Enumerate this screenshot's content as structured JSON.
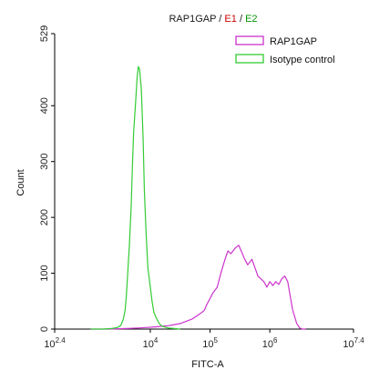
{
  "chart_data": {
    "type": "line",
    "title_parts": [
      {
        "text": "RAP1GAP",
        "color": "#1a1a1a"
      },
      {
        "text": " / ",
        "color": "#1a1a1a"
      },
      {
        "text": "E1",
        "color": "#cc0000"
      },
      {
        "text": " / ",
        "color": "#1a1a1a"
      },
      {
        "text": "E2",
        "color": "#009900"
      }
    ],
    "xlabel": "FITC-A",
    "ylabel": "Count",
    "x_scale": "log10",
    "xlim": [
      2.4,
      7.4
    ],
    "ylim": [
      0,
      529
    ],
    "x_ticks": [
      {
        "base": "10",
        "exp": "2.4",
        "value": 2.4
      },
      {
        "base": "10",
        "exp": "4",
        "value": 4
      },
      {
        "base": "10",
        "exp": "5",
        "value": 5
      },
      {
        "base": "10",
        "exp": "6",
        "value": 6
      },
      {
        "base": "10",
        "exp": "7.4",
        "value": 7.4
      }
    ],
    "y_ticks": [
      "0",
      "100",
      "200",
      "300",
      "400",
      "529"
    ],
    "y_tick_values": [
      0,
      100,
      200,
      300,
      400,
      529
    ],
    "legend_position": "top-right",
    "series": [
      {
        "name": "RAP1GAP",
        "color": "#cc33cc",
        "log10_x": [
          3.0,
          3.3,
          3.6,
          3.8,
          3.95,
          4.1,
          4.2,
          4.3,
          4.4,
          4.5,
          4.6,
          4.7,
          4.8,
          4.9,
          4.95,
          5.0,
          5.05,
          5.12,
          5.18,
          5.25,
          5.3,
          5.35,
          5.42,
          5.48,
          5.52,
          5.58,
          5.63,
          5.7,
          5.75,
          5.8,
          5.85,
          5.9,
          5.95,
          6.0,
          6.05,
          6.1,
          6.15,
          6.2,
          6.25,
          6.3,
          6.38,
          6.45,
          6.5,
          6.55,
          6.6
        ],
        "counts": [
          0,
          0,
          1,
          2,
          3,
          4,
          5,
          6,
          8,
          10,
          14,
          18,
          25,
          33,
          45,
          55,
          65,
          75,
          100,
          125,
          140,
          135,
          145,
          150,
          140,
          125,
          115,
          125,
          110,
          95,
          90,
          85,
          75,
          85,
          78,
          85,
          80,
          90,
          95,
          85,
          35,
          10,
          2,
          0,
          0
        ]
      },
      {
        "name": "Isotype control",
        "color": "#33cc33",
        "log10_x": [
          3.0,
          3.2,
          3.35,
          3.4,
          3.45,
          3.5,
          3.52,
          3.55,
          3.58,
          3.6,
          3.62,
          3.65,
          3.68,
          3.7,
          3.72,
          3.75,
          3.78,
          3.8,
          3.82,
          3.85,
          3.88,
          3.9,
          3.93,
          3.96,
          4.0,
          4.03,
          4.06,
          4.1,
          4.15,
          4.2,
          4.3,
          4.4,
          4.5
        ],
        "counts": [
          0,
          0,
          1,
          2,
          3,
          6,
          10,
          18,
          35,
          60,
          95,
          150,
          220,
          290,
          350,
          400,
          450,
          470,
          465,
          430,
          340,
          250,
          170,
          110,
          75,
          50,
          30,
          20,
          10,
          5,
          2,
          1,
          0
        ]
      }
    ]
  }
}
